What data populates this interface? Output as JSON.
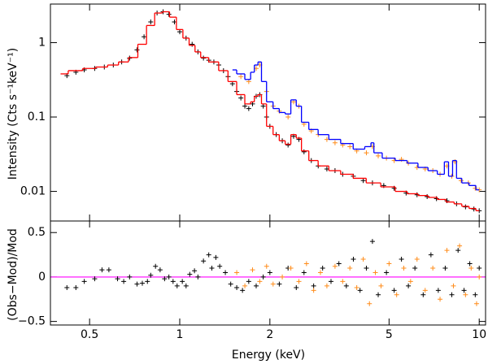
{
  "chart_data": [
    {
      "type": "line",
      "ylabel": "Intensity (Cts s⁻¹keV⁻¹)",
      "xscale": "log",
      "yscale": "log",
      "xlim": [
        0.37,
        10.5
      ],
      "ylim": [
        0.004,
        3.3
      ],
      "yticks": [
        0.01,
        0.1,
        1
      ],
      "series": [
        {
          "style": "points",
          "color": "#000000",
          "x": [
            0.42,
            0.45,
            0.48,
            0.52,
            0.56,
            0.6,
            0.64,
            0.68,
            0.72,
            0.76,
            0.8,
            0.84,
            0.88,
            0.92,
            0.96,
            1.0,
            1.05,
            1.1,
            1.15,
            1.2,
            1.25,
            1.3,
            1.35,
            1.4,
            1.45,
            1.5,
            1.55,
            1.6,
            1.65,
            1.7,
            1.75,
            1.8,
            1.85,
            1.9,
            1.95,
            2.0,
            2.1,
            2.2,
            2.3,
            2.4,
            2.5,
            2.6,
            2.75,
            2.9,
            3.1,
            3.3,
            3.5,
            3.8,
            4.1,
            4.4,
            4.8,
            5.2,
            5.7,
            6.2,
            6.7,
            7.2,
            7.8,
            8.4,
            9.0,
            9.6,
            10.0
          ],
          "values": [
            0.36,
            0.4,
            0.43,
            0.45,
            0.47,
            0.5,
            0.55,
            0.62,
            0.8,
            1.2,
            1.9,
            2.5,
            2.6,
            2.4,
            1.9,
            1.4,
            1.15,
            0.95,
            0.75,
            0.62,
            0.58,
            0.55,
            0.5,
            0.42,
            0.35,
            0.28,
            0.22,
            0.18,
            0.14,
            0.13,
            0.15,
            0.19,
            0.2,
            0.14,
            0.1,
            0.075,
            0.058,
            0.048,
            0.042,
            0.055,
            0.05,
            0.034,
            0.026,
            0.022,
            0.02,
            0.019,
            0.017,
            0.016,
            0.014,
            0.013,
            0.012,
            0.011,
            0.0095,
            0.009,
            0.0085,
            0.008,
            0.0075,
            0.0068,
            0.0062,
            0.0058,
            0.0055
          ]
        },
        {
          "style": "points",
          "color": "#ff8c1a",
          "x": [
            1.6,
            1.7,
            1.8,
            1.85,
            1.95,
            2.05,
            2.15,
            2.3,
            2.4,
            2.5,
            2.6,
            2.75,
            2.9,
            3.1,
            3.3,
            3.5,
            3.7,
            3.9,
            4.2,
            4.4,
            4.6,
            4.9,
            5.2,
            5.5,
            5.8,
            6.2,
            6.6,
            7.0,
            7.4,
            7.8,
            8.1,
            8.3,
            8.7,
            9.2,
            9.7,
            10.0
          ],
          "values": [
            0.35,
            0.3,
            0.45,
            0.5,
            0.22,
            0.14,
            0.12,
            0.1,
            0.16,
            0.14,
            0.08,
            0.065,
            0.058,
            0.05,
            0.045,
            0.042,
            0.04,
            0.035,
            0.033,
            0.04,
            0.03,
            0.028,
            0.026,
            0.027,
            0.024,
            0.021,
            0.02,
            0.019,
            0.017,
            0.022,
            0.016,
            0.025,
            0.014,
            0.013,
            0.011,
            0.0105
          ]
        },
        {
          "style": "step",
          "color": "#ff0000",
          "x": [
            0.4,
            0.45,
            0.5,
            0.55,
            0.6,
            0.65,
            0.7,
            0.75,
            0.8,
            0.85,
            0.9,
            0.95,
            1.0,
            1.05,
            1.1,
            1.15,
            1.2,
            1.3,
            1.4,
            1.5,
            1.6,
            1.7,
            1.75,
            1.8,
            1.85,
            1.9,
            2.0,
            2.1,
            2.2,
            2.3,
            2.4,
            2.5,
            2.6,
            2.8,
            3.0,
            3.3,
            3.6,
            4.0,
            4.4,
            5.0,
            5.5,
            6.0,
            6.5,
            7.0,
            7.5,
            8.0,
            8.5,
            9.0,
            9.5,
            10.0
          ],
          "values": [
            0.38,
            0.42,
            0.45,
            0.47,
            0.5,
            0.55,
            0.63,
            0.95,
            1.7,
            2.5,
            2.6,
            2.2,
            1.5,
            1.15,
            0.92,
            0.75,
            0.63,
            0.55,
            0.42,
            0.3,
            0.2,
            0.15,
            0.16,
            0.19,
            0.2,
            0.15,
            0.075,
            0.058,
            0.048,
            0.043,
            0.058,
            0.052,
            0.035,
            0.026,
            0.022,
            0.019,
            0.017,
            0.015,
            0.013,
            0.0115,
            0.01,
            0.0093,
            0.0088,
            0.0083,
            0.0078,
            0.0072,
            0.0068,
            0.0063,
            0.0059,
            0.0055
          ]
        },
        {
          "style": "step",
          "color": "#0000ff",
          "x": [
            1.5,
            1.6,
            1.7,
            1.75,
            1.8,
            1.85,
            1.9,
            2.0,
            2.1,
            2.2,
            2.3,
            2.4,
            2.5,
            2.6,
            2.8,
            3.0,
            3.3,
            3.6,
            4.0,
            4.3,
            4.4,
            4.5,
            5.0,
            5.5,
            6.0,
            6.5,
            7.0,
            7.5,
            7.8,
            8.0,
            8.3,
            8.5,
            9.0,
            9.5,
            10.0
          ],
          "values": [
            0.43,
            0.38,
            0.32,
            0.4,
            0.5,
            0.55,
            0.3,
            0.16,
            0.13,
            0.115,
            0.11,
            0.17,
            0.14,
            0.085,
            0.068,
            0.058,
            0.05,
            0.044,
            0.037,
            0.04,
            0.045,
            0.033,
            0.028,
            0.026,
            0.024,
            0.021,
            0.019,
            0.017,
            0.025,
            0.016,
            0.026,
            0.015,
            0.013,
            0.012,
            0.0105
          ]
        }
      ]
    },
    {
      "type": "scatter",
      "xlabel": "Energy (keV)",
      "ylabel": "(Obs−Mod)/Mod",
      "xscale": "log",
      "xlim": [
        0.37,
        10.5
      ],
      "xticks": [
        0.5,
        1,
        2,
        5,
        10
      ],
      "ylim": [
        -0.54,
        0.63
      ],
      "yticks": [
        {
          "value": -0.5,
          "label": "−0.5"
        },
        0,
        0.5
      ],
      "zero_line_color": "#ff00ff",
      "series": [
        {
          "color": "#000000",
          "x": [
            0.42,
            0.45,
            0.48,
            0.52,
            0.55,
            0.58,
            0.62,
            0.65,
            0.68,
            0.72,
            0.75,
            0.78,
            0.8,
            0.83,
            0.86,
            0.89,
            0.92,
            0.95,
            0.98,
            1.02,
            1.05,
            1.08,
            1.12,
            1.15,
            1.2,
            1.25,
            1.28,
            1.32,
            1.36,
            1.42,
            1.48,
            1.55,
            1.62,
            1.7,
            1.8,
            1.9,
            2.0,
            2.15,
            2.3,
            2.45,
            2.6,
            2.8,
            3.0,
            3.2,
            3.4,
            3.6,
            3.8,
            4.0,
            4.2,
            4.4,
            4.6,
            4.9,
            5.2,
            5.5,
            5.8,
            6.1,
            6.5,
            6.9,
            7.3,
            7.7,
            8.1,
            8.5,
            8.9,
            9.3,
            9.7,
            10.0
          ],
          "values": [
            -0.12,
            -0.12,
            -0.05,
            -0.02,
            0.08,
            0.08,
            -0.02,
            -0.05,
            0.0,
            -0.08,
            -0.07,
            -0.05,
            0.02,
            0.12,
            0.08,
            -0.02,
            0.0,
            -0.05,
            -0.1,
            -0.05,
            -0.1,
            0.03,
            0.07,
            0.0,
            0.18,
            0.25,
            0.1,
            0.22,
            0.12,
            0.05,
            -0.08,
            -0.12,
            -0.15,
            -0.05,
            -0.1,
            0.0,
            0.05,
            -0.08,
            0.1,
            -0.12,
            0.05,
            -0.1,
            0.1,
            -0.05,
            0.15,
            -0.1,
            0.2,
            -0.15,
            0.1,
            0.4,
            -0.2,
            0.05,
            -0.15,
            0.2,
            -0.1,
            0.1,
            -0.2,
            0.25,
            -0.15,
            0.1,
            -0.2,
            0.3,
            -0.15,
            0.15,
            -0.2,
            0.1
          ]
        },
        {
          "color": "#ff8c1a",
          "x": [
            1.55,
            1.65,
            1.75,
            1.85,
            1.95,
            2.05,
            2.2,
            2.35,
            2.5,
            2.65,
            2.8,
            2.95,
            3.1,
            3.3,
            3.5,
            3.7,
            3.9,
            4.1,
            4.3,
            4.5,
            4.7,
            5.0,
            5.3,
            5.6,
            5.9,
            6.2,
            6.6,
            7.0,
            7.4,
            7.8,
            8.2,
            8.6,
            9.0,
            9.4,
            9.8,
            10.0
          ],
          "values": [
            0.05,
            -0.1,
            0.08,
            -0.05,
            0.12,
            -0.08,
            0.0,
            0.1,
            -0.05,
            0.15,
            -0.15,
            0.05,
            -0.1,
            0.12,
            -0.05,
            0.1,
            -0.12,
            0.2,
            -0.3,
            0.05,
            -0.1,
            0.15,
            -0.2,
            0.1,
            -0.05,
            0.2,
            -0.15,
            0.1,
            -0.25,
            0.3,
            -0.1,
            0.35,
            -0.2,
            0.1,
            -0.3,
            0.0
          ]
        }
      ]
    }
  ]
}
